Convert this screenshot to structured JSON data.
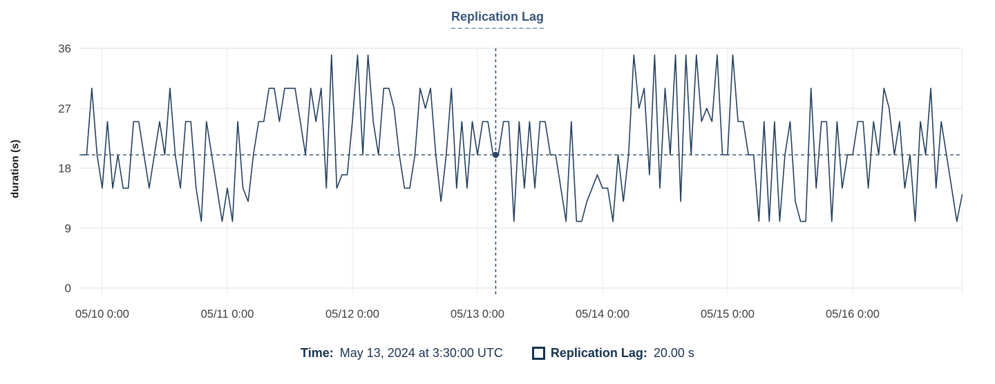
{
  "title": "Replication Lag",
  "colors": {
    "line": "#24405f",
    "crosshair": "#2f4f6e",
    "dot": "#2c4763",
    "title_text": "#3a5578",
    "legend_text": "#16324f",
    "tick_text": "#3d3d3d",
    "grid_horizontal": "#e4e4e4",
    "grid_vertical": "#ededed"
  },
  "legend": {
    "time_label": "Time:",
    "time_value": "May 13, 2024 at 3:30:00 UTC",
    "series_swatch": "square-outline",
    "series_label": "Replication Lag:",
    "series_value": "20.00 s"
  },
  "chart_data": {
    "type": "line",
    "title": "Replication Lag",
    "xlabel": "",
    "ylabel": "duration (s)",
    "ylim": [
      0,
      36
    ],
    "y_ticks": [
      0,
      9,
      18,
      27,
      36
    ],
    "grid": true,
    "x_start": "2024-05-09 20:00 UTC",
    "x_step_hours": 1,
    "x_ticks": [
      {
        "label": "05/10 0:00",
        "hour": 4
      },
      {
        "label": "05/11 0:00",
        "hour": 28
      },
      {
        "label": "05/12 0:00",
        "hour": 52
      },
      {
        "label": "05/13 0:00",
        "hour": 76
      },
      {
        "label": "05/14 0:00",
        "hour": 100
      },
      {
        "label": "05/15 0:00",
        "hour": 124
      },
      {
        "label": "05/16 0:00",
        "hour": 148
      }
    ],
    "crosshair": {
      "time": "2024-05-13 03:30 UTC",
      "hour_offset": 79.5,
      "value": 20,
      "reference_line_value": 20
    },
    "series": [
      {
        "name": "Replication Lag",
        "unit": "s",
        "values": [
          20,
          20,
          30,
          20,
          15,
          25,
          15,
          20,
          15,
          15,
          25,
          25,
          20,
          15,
          20,
          25,
          20,
          30,
          20,
          15,
          25,
          25,
          15,
          10,
          25,
          20,
          15,
          10,
          15,
          10,
          25,
          15,
          13,
          20,
          25,
          25,
          30,
          30,
          25,
          30,
          30,
          30,
          25,
          20,
          30,
          25,
          30,
          15,
          35,
          15,
          17,
          17,
          25,
          35,
          20,
          35,
          25,
          20,
          30,
          30,
          27,
          20,
          15,
          15,
          20,
          30,
          27,
          30,
          20,
          13,
          20,
          30,
          15,
          25,
          15,
          25,
          20,
          25,
          25,
          20,
          20,
          25,
          25,
          10,
          25,
          15,
          25,
          15,
          25,
          25,
          20,
          20,
          15,
          10,
          25,
          10,
          10,
          13,
          15,
          17,
          15,
          15,
          10,
          20,
          13,
          20,
          35,
          27,
          30,
          17,
          35,
          15,
          30,
          20,
          35,
          13,
          35,
          20,
          35,
          25,
          27,
          25,
          35,
          20,
          20,
          35,
          25,
          25,
          20,
          20,
          10,
          25,
          10,
          25,
          10,
          20,
          25,
          13,
          10,
          10,
          30,
          15,
          25,
          25,
          10,
          25,
          15,
          20,
          20,
          25,
          25,
          15,
          25,
          20,
          30,
          27,
          20,
          25,
          15,
          20,
          10,
          25,
          20,
          30,
          15,
          25,
          20,
          15,
          10,
          14
        ]
      }
    ]
  }
}
